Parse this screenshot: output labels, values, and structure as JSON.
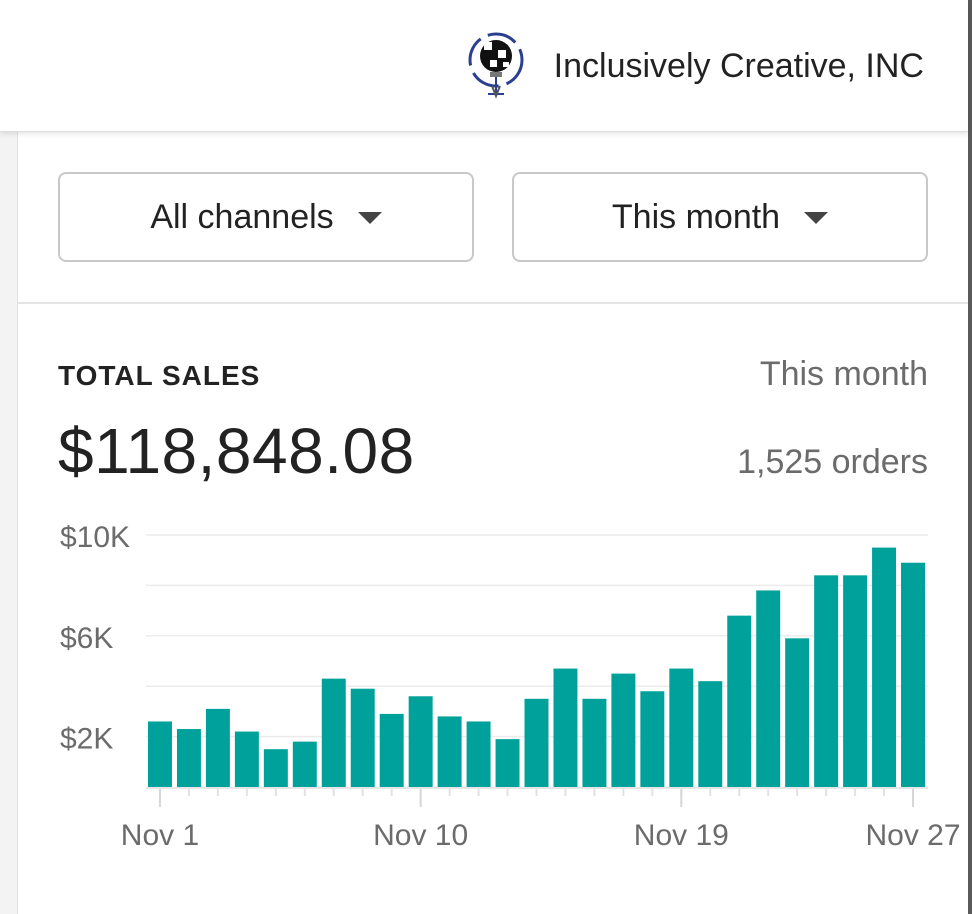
{
  "header": {
    "store_name": "Inclusively Creative, INC",
    "logo_icon": "lightbulb-puzzle-logo"
  },
  "filters": {
    "channel_label": "All channels",
    "period_label": "This month"
  },
  "sales_card": {
    "title": "TOTAL SALES",
    "period": "This month",
    "total": "$118,848.08",
    "orders": "1,525 orders"
  },
  "colors": {
    "bar": "#00a19a",
    "grid": "#ececec",
    "axis_text": "#6b6b6b"
  },
  "chart_data": {
    "type": "bar",
    "categories": [
      "Nov 1",
      "Nov 2",
      "Nov 3",
      "Nov 4",
      "Nov 5",
      "Nov 6",
      "Nov 7",
      "Nov 8",
      "Nov 9",
      "Nov 10",
      "Nov 11",
      "Nov 12",
      "Nov 13",
      "Nov 14",
      "Nov 15",
      "Nov 16",
      "Nov 17",
      "Nov 18",
      "Nov 19",
      "Nov 20",
      "Nov 21",
      "Nov 22",
      "Nov 23",
      "Nov 24",
      "Nov 25",
      "Nov 26",
      "Nov 27"
    ],
    "values": [
      2600,
      2300,
      3100,
      2200,
      1500,
      1800,
      4300,
      3900,
      2900,
      3600,
      2800,
      2600,
      1900,
      3500,
      4700,
      3500,
      4500,
      3800,
      4700,
      4200,
      6800,
      7800,
      5900,
      8400,
      8400,
      9500,
      8900
    ],
    "ylim": [
      0,
      10000
    ],
    "y_ticks": [
      2000,
      6000,
      10000
    ],
    "y_tick_labels": [
      "$2K",
      "$6K",
      "$10K"
    ],
    "x_tick_labels": [
      "Nov 1",
      "Nov 10",
      "Nov 19",
      "Nov 27"
    ],
    "x_tick_categories": [
      "Nov 1",
      "Nov 10",
      "Nov 19",
      "Nov 27"
    ],
    "grid": true,
    "legend": "none"
  }
}
